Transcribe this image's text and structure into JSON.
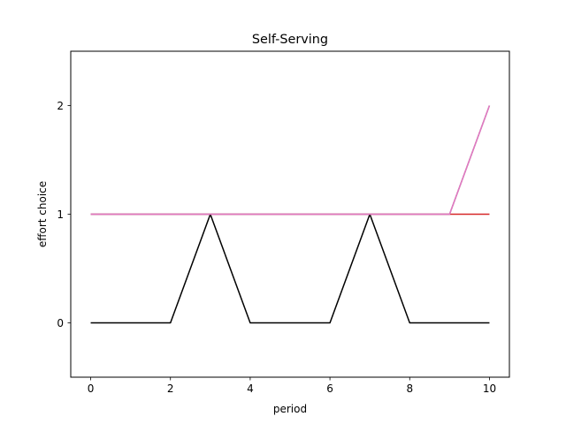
{
  "chart_data": {
    "type": "line",
    "title": "Self-Serving",
    "xlabel": "period",
    "ylabel": "effort choice",
    "xlim": [
      -0.5,
      10.5
    ],
    "ylim": [
      -0.5,
      2.5
    ],
    "xticks": [
      0,
      2,
      4,
      6,
      8,
      10
    ],
    "yticks": [
      0,
      1,
      2
    ],
    "grid": false,
    "x": [
      0,
      1,
      2,
      3,
      4,
      5,
      6,
      7,
      8,
      9,
      10
    ],
    "series": [
      {
        "color": "#000000",
        "values": [
          0,
          0,
          0,
          1,
          0,
          0,
          0,
          1,
          0,
          0,
          0
        ]
      },
      {
        "color": "#d62728",
        "values": [
          1,
          1,
          1,
          1,
          1,
          1,
          1,
          1,
          1,
          1,
          1
        ]
      },
      {
        "color": "#7f7f7f",
        "values": [
          1,
          1,
          1,
          1,
          1,
          1,
          1,
          1,
          1,
          1,
          2
        ]
      },
      {
        "color": "#e377c2",
        "values": [
          1,
          1,
          1,
          1,
          1,
          1,
          1,
          1,
          1,
          1,
          2
        ]
      }
    ]
  }
}
